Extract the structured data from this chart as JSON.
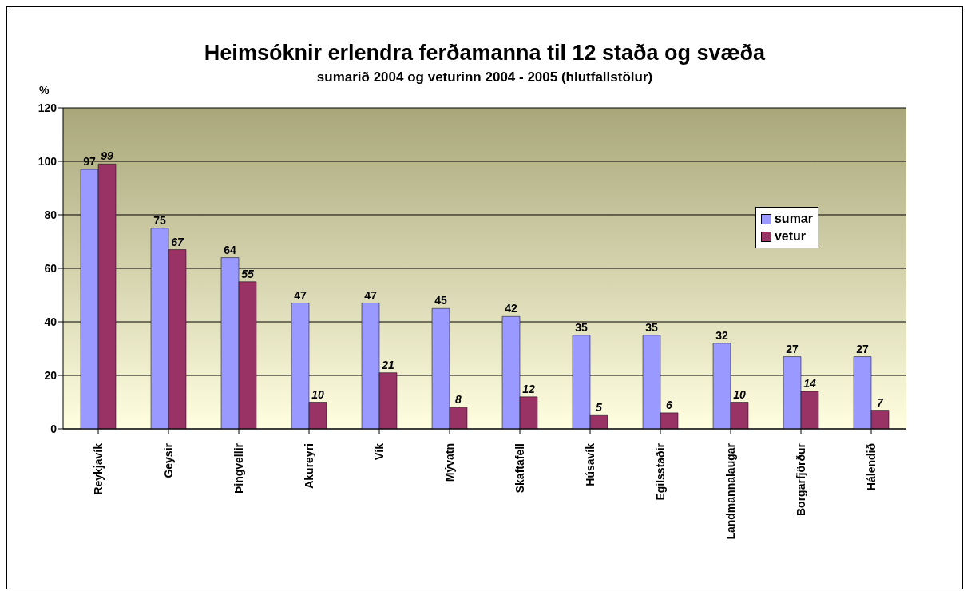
{
  "chart_data": {
    "type": "bar",
    "title": "Heimsóknir erlendra ferðamanna til 12 staða og svæða",
    "subtitle": "sumarið 2004 og veturinn 2004 - 2005 (hlutfallstölur)",
    "ylabel": "%",
    "categories": [
      "Reykjavík",
      "Geysir",
      "Þingvellir",
      "Akureyri",
      "Vík",
      "Mývatn",
      "Skaftafell",
      "Húsavík",
      "Egilsstaðir",
      "Landmannalaugar",
      "Borgarfjörður",
      "Hálendið"
    ],
    "series": [
      {
        "name": "sumar",
        "color": "#9999ff",
        "values": [
          97,
          75,
          64,
          47,
          47,
          45,
          42,
          35,
          35,
          32,
          27,
          27
        ]
      },
      {
        "name": "vetur",
        "color": "#993366",
        "values": [
          99,
          67,
          55,
          10,
          21,
          8,
          12,
          5,
          6,
          10,
          14,
          7
        ]
      }
    ],
    "ylim": [
      0,
      120
    ],
    "yticks": [
      0,
      20,
      40,
      60,
      80,
      100,
      120
    ],
    "grid": "y",
    "legend": "right",
    "data_labels": true
  }
}
